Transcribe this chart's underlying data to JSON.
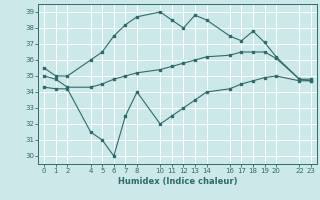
{
  "title": "",
  "xlabel": "Humidex (Indice chaleur)",
  "xlim": [
    -0.5,
    23.5
  ],
  "ylim": [
    29.5,
    39.5
  ],
  "yticks": [
    30,
    31,
    32,
    33,
    34,
    35,
    36,
    37,
    38,
    39
  ],
  "xticks": [
    0,
    1,
    2,
    4,
    5,
    6,
    7,
    8,
    10,
    11,
    12,
    13,
    14,
    16,
    17,
    18,
    19,
    20,
    22,
    23
  ],
  "bg_color": "#cce8e8",
  "grid_color": "#ffffff",
  "line_color": "#2e6b6b",
  "lines": [
    {
      "x": [
        0,
        1,
        2,
        4,
        5,
        6,
        7,
        8,
        10,
        11,
        12,
        13,
        14,
        16,
        17,
        18,
        19,
        20,
        22,
        23
      ],
      "y": [
        35.5,
        35.0,
        35.0,
        36.0,
        36.5,
        37.5,
        38.2,
        38.7,
        39.0,
        38.5,
        38.0,
        38.8,
        38.5,
        37.5,
        37.2,
        37.8,
        37.1,
        36.2,
        34.8,
        34.8
      ]
    },
    {
      "x": [
        0,
        1,
        2,
        4,
        5,
        6,
        7,
        8,
        10,
        11,
        12,
        13,
        14,
        16,
        17,
        18,
        19,
        20,
        22,
        23
      ],
      "y": [
        35.0,
        34.8,
        34.3,
        34.3,
        34.5,
        34.8,
        35.0,
        35.2,
        35.4,
        35.6,
        35.8,
        36.0,
        36.2,
        36.3,
        36.5,
        36.5,
        36.5,
        36.1,
        34.8,
        34.7
      ]
    },
    {
      "x": [
        0,
        1,
        2,
        4,
        5,
        6,
        7,
        8,
        10,
        11,
        12,
        13,
        14,
        16,
        17,
        18,
        19,
        20,
        22,
        23
      ],
      "y": [
        34.3,
        34.2,
        34.2,
        31.5,
        31.0,
        30.0,
        32.5,
        34.0,
        32.0,
        32.5,
        33.0,
        33.5,
        34.0,
        34.2,
        34.5,
        34.7,
        34.9,
        35.0,
        34.7,
        34.7
      ]
    }
  ]
}
